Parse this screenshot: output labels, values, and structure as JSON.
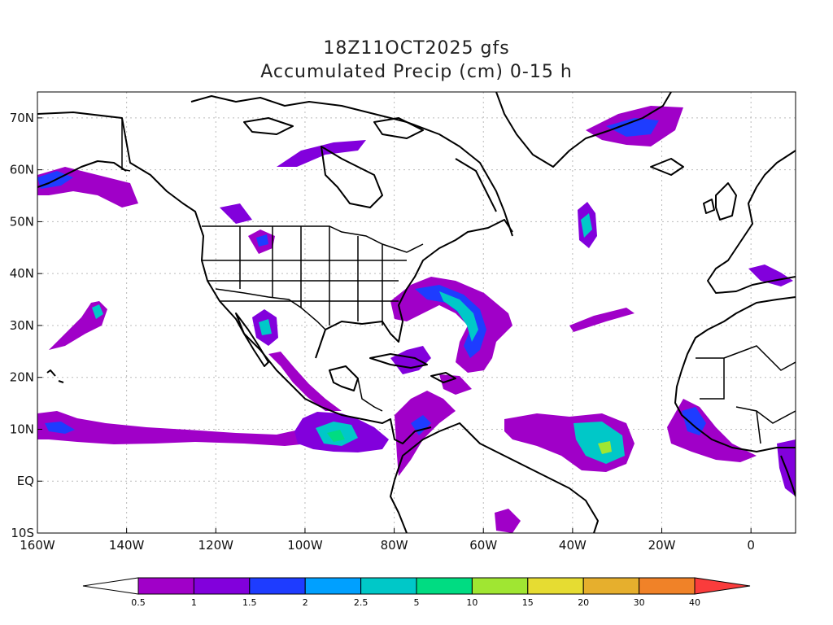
{
  "title": {
    "line1": "18Z11OCT2025 gfs",
    "line2": "Accumulated Precip (cm) 0-15 h"
  },
  "map": {
    "projection": "lat-lon",
    "lon_range": [
      -160,
      10
    ],
    "lat_range": [
      -10,
      75
    ],
    "lon_ticks": [
      "160W",
      "140W",
      "120W",
      "100W",
      "80W",
      "60W",
      "40W",
      "20W",
      "0"
    ],
    "lat_ticks": [
      "10S",
      "EQ",
      "10N",
      "20N",
      "30N",
      "40N",
      "50N",
      "60N",
      "70N"
    ],
    "grid": "dotted"
  },
  "legend": {
    "labels": [
      "0.5",
      "1",
      "1.5",
      "2",
      "2.5",
      "5",
      "10",
      "15",
      "20",
      "30",
      "40"
    ],
    "colors": [
      "#ffffff",
      "#a000c8",
      "#8200dc",
      "#1e3cff",
      "#00a0ff",
      "#00c8c8",
      "#00dc82",
      "#a0e632",
      "#e6dc32",
      "#e6af2d",
      "#f08228",
      "#fa3c3c"
    ]
  }
}
